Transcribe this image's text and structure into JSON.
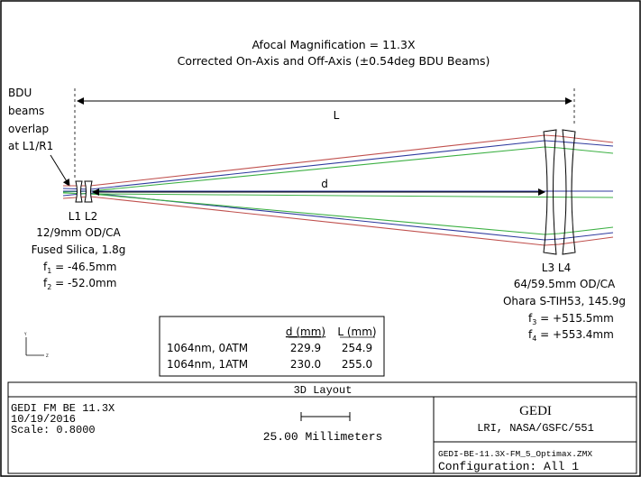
{
  "title": {
    "line1": "Afocal Magnification = 11.3X",
    "line2": "Corrected On-Axis and Off-Axis (±0.54deg BDU Beams)"
  },
  "bdu_note": [
    "BDU",
    "beams",
    "overlap",
    "at L1/R1"
  ],
  "dimension_labels": {
    "L": "L",
    "d": "d"
  },
  "lens_small": {
    "names": "L1 L2",
    "diameter": "12/9mm OD/CA",
    "material": "Fused Silica, 1.8g",
    "f1_sym": "f",
    "f1_sub": "1",
    "f1_val": " = -46.5mm",
    "f2_sym": "f",
    "f2_sub": "2",
    "f2_val": " = -52.0mm"
  },
  "lens_large": {
    "names": "L3  L4",
    "diameter": "64/59.5mm OD/CA",
    "material": "Ohara S-TIH53, 145.9g",
    "f3_sym": "f",
    "f3_sub": "3",
    "f3_val": " = +515.5mm",
    "f4_sym": "f",
    "f4_sub": "4",
    "f4_val": " = +553.4mm"
  },
  "table": {
    "headers": [
      "",
      "d (mm)",
      "L (mm)"
    ],
    "rows": [
      [
        "1064nm, 0ATM",
        "229.9",
        "254.9"
      ],
      [
        "1064nm, 1ATM",
        "230.0",
        "255.0"
      ]
    ]
  },
  "axis_triad": {
    "y": "Y",
    "z": "Z"
  },
  "footer": {
    "layout_label": "3D Layout",
    "left_line1": "GEDI FM BE 11.3X",
    "left_line2": "10/19/2016",
    "left_line3": "Scale:  0.8000",
    "scale_text": "25.00 Millimeters",
    "right_title": "GEDI",
    "right_org": "LRI, NASA/GSFC/551",
    "filename": "GEDI-BE-11.3X-FM_5_Optimax.ZMX",
    "configuration": "Configuration: All 1"
  },
  "colors": {
    "ray_red": "#c0504d",
    "ray_blue": "#2e3a9e",
    "ray_green": "#3cb043",
    "line": "#000000"
  }
}
